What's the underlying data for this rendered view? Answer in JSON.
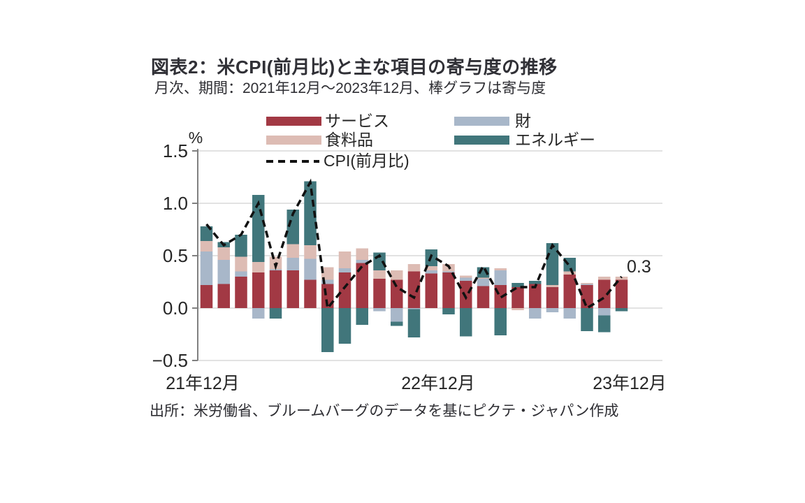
{
  "header": {
    "title": "図表2：米CPI(前月比)と主な項目の寄与度の推移",
    "subtitle": "月次、期間：2021年12月～2023年12月、棒グラフは寄与度"
  },
  "legend": {
    "services": "サービス",
    "goods": "財",
    "food": "食料品",
    "energy": "エネルギー",
    "cpi_line": "CPI(前月比)"
  },
  "axis": {
    "unit": "%",
    "y_ticks": [
      "1.5",
      "1.0",
      "0.5",
      "0.0",
      "−0.5"
    ],
    "x_labels": [
      "21年12月",
      "22年12月",
      "23年12月"
    ]
  },
  "annotation": {
    "last_point_label": "0.3"
  },
  "source": "出所：米労働省、ブルームバーグのデータを基にピクテ・ジャパン作成",
  "colors": {
    "services": "#A23944",
    "goods": "#A8B7C9",
    "food": "#DDBCB4",
    "energy": "#41767B",
    "cpi_line": "#111111",
    "gridline": "#D9D9D9",
    "axis": "#808080",
    "text": "#262626"
  },
  "chart_data": {
    "type": "bar",
    "subtype": "stacked-bars-with-dashed-line",
    "title": "図表2：米CPI(前月比)と主な項目の寄与度の推移",
    "xlabel": "",
    "ylabel": "%",
    "ylim": [
      -0.5,
      1.5
    ],
    "y_gridlines": [
      -0.5,
      0.0,
      0.5,
      1.0,
      1.5
    ],
    "grid": true,
    "legend_position": "top",
    "months": [
      "2021-12",
      "2022-01",
      "2022-02",
      "2022-03",
      "2022-04",
      "2022-05",
      "2022-06",
      "2022-07",
      "2022-08",
      "2022-09",
      "2022-10",
      "2022-11",
      "2022-12",
      "2023-01",
      "2023-02",
      "2023-03",
      "2023-04",
      "2023-05",
      "2023-06",
      "2023-07",
      "2023-08",
      "2023-09",
      "2023-10",
      "2023-11",
      "2023-12"
    ],
    "x_tick_positions": {
      "21年12月": 0,
      "22年12月": 12,
      "23年12月": 24
    },
    "series": [
      {
        "key": "services",
        "name": "サービス",
        "values": [
          0.22,
          0.23,
          0.3,
          0.34,
          0.36,
          0.36,
          0.27,
          0.23,
          0.34,
          0.43,
          0.28,
          0.27,
          0.35,
          0.33,
          0.34,
          0.26,
          0.21,
          0.22,
          0.2,
          0.23,
          0.2,
          0.32,
          0.22,
          0.27,
          0.27
        ]
      },
      {
        "key": "goods",
        "name": "財",
        "values": [
          0.32,
          0.23,
          0.05,
          -0.1,
          0.01,
          0.12,
          0.2,
          0.04,
          0.04,
          0.03,
          -0.03,
          -0.13,
          -0.01,
          0.03,
          0.01,
          0.03,
          0.07,
          0.14,
          0.0,
          -0.1,
          -0.04,
          -0.1,
          0.01,
          -0.07,
          0.0
        ]
      },
      {
        "key": "food",
        "name": "食料品",
        "values": [
          0.1,
          0.12,
          0.14,
          0.1,
          0.12,
          0.13,
          0.13,
          0.12,
          0.16,
          0.11,
          0.08,
          0.09,
          0.07,
          0.04,
          0.07,
          0.02,
          0.01,
          0.02,
          -0.02,
          0.0,
          0.02,
          0.03,
          0.01,
          0.03,
          0.03
        ]
      },
      {
        "key": "energy",
        "name": "エネルギー",
        "values": [
          0.14,
          0.05,
          0.21,
          0.64,
          -0.1,
          0.33,
          0.61,
          -0.42,
          -0.34,
          -0.16,
          0.17,
          -0.04,
          -0.27,
          0.16,
          -0.06,
          -0.27,
          0.1,
          -0.26,
          0.04,
          0.03,
          0.4,
          0.13,
          -0.22,
          -0.16,
          -0.03
        ]
      }
    ],
    "line": {
      "key": "cpi",
      "name": "CPI(前月比)",
      "values": [
        0.8,
        0.6,
        0.7,
        1.0,
        0.4,
        0.9,
        1.2,
        0.0,
        0.2,
        0.4,
        0.5,
        0.2,
        0.1,
        0.5,
        0.4,
        0.1,
        0.4,
        0.1,
        0.2,
        0.2,
        0.6,
        0.4,
        0.0,
        0.1,
        0.3
      ]
    },
    "last_value_label": "0.3"
  }
}
